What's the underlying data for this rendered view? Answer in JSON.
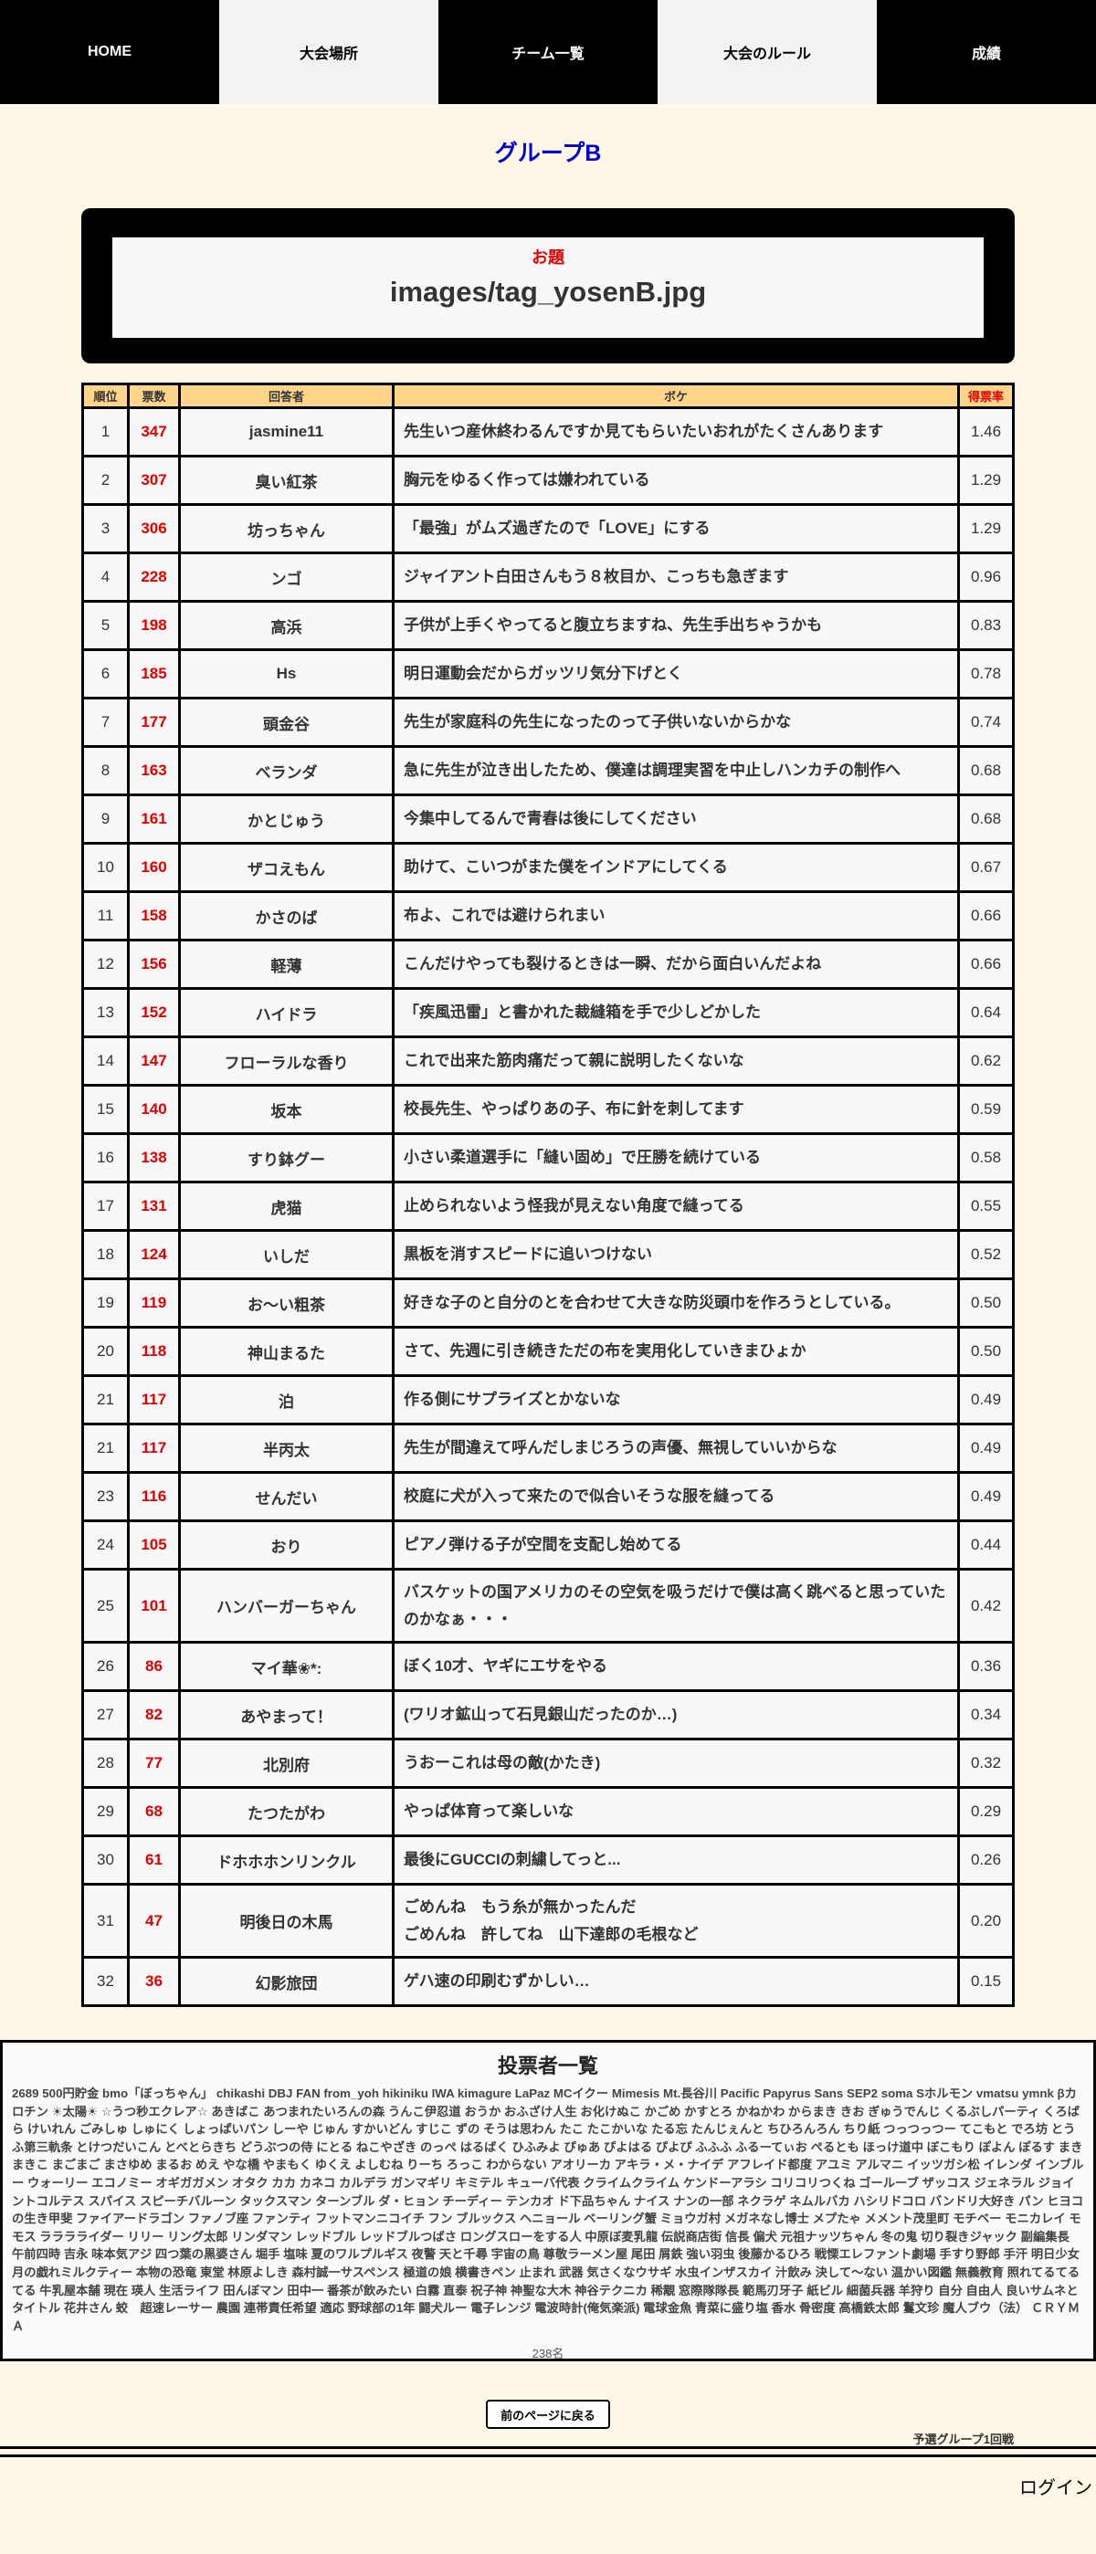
{
  "nav": [
    {
      "label": "HOME",
      "theme": "dark"
    },
    {
      "label": "大会場所",
      "theme": "light"
    },
    {
      "label": "チーム一覧",
      "theme": "dark"
    },
    {
      "label": "大会のルール",
      "theme": "light"
    },
    {
      "label": "成績",
      "theme": "dark"
    }
  ],
  "group_title": "グループB",
  "odai": {
    "label": "お題",
    "value": "images/tag_yosenB.jpg"
  },
  "table": {
    "headers": {
      "rank": "順位",
      "votes": "票数",
      "name": "回答者",
      "boke": "ボケ",
      "rate": "得票率"
    },
    "rows": [
      {
        "rank": "1",
        "votes": "347",
        "name": "jasmine11",
        "boke": "先生いつ産休終わるんですか見てもらいたいおれがたくさんあります",
        "rate": "1.46"
      },
      {
        "rank": "2",
        "votes": "307",
        "name": "臭い紅茶",
        "boke": "胸元をゆるく作っては嫌われている",
        "rate": "1.29"
      },
      {
        "rank": "3",
        "votes": "306",
        "name": "坊っちゃん",
        "boke": "「最強」がムズ過ぎたので「LOVE」にする",
        "rate": "1.29"
      },
      {
        "rank": "4",
        "votes": "228",
        "name": "ンゴ",
        "boke": "ジャイアント白田さんもう８枚目か、こっちも急ぎます",
        "rate": "0.96"
      },
      {
        "rank": "5",
        "votes": "198",
        "name": "高浜",
        "boke": "子供が上手くやってると腹立ちますね、先生手出ちゃうかも",
        "rate": "0.83"
      },
      {
        "rank": "6",
        "votes": "185",
        "name": "Hs",
        "boke": "明日運動会だからガッツリ気分下げとく",
        "rate": "0.78"
      },
      {
        "rank": "7",
        "votes": "177",
        "name": "頭金谷",
        "boke": "先生が家庭科の先生になったのって子供いないからかな",
        "rate": "0.74"
      },
      {
        "rank": "8",
        "votes": "163",
        "name": "ベランダ",
        "boke": "急に先生が泣き出したため、僕達は調理実習を中止しハンカチの制作へ",
        "rate": "0.68"
      },
      {
        "rank": "9",
        "votes": "161",
        "name": "かとじゅう",
        "boke": "今集中してるんで青春は後にしてください",
        "rate": "0.68"
      },
      {
        "rank": "10",
        "votes": "160",
        "name": "ザコえもん",
        "boke": "助けて、こいつがまた僕をインドアにしてくる",
        "rate": "0.67"
      },
      {
        "rank": "11",
        "votes": "158",
        "name": "かさのば",
        "boke": "布よ、これでは避けられまい",
        "rate": "0.66"
      },
      {
        "rank": "12",
        "votes": "156",
        "name": "軽薄",
        "boke": "こんだけやっても裂けるときは一瞬、だから面白いんだよね",
        "rate": "0.66"
      },
      {
        "rank": "13",
        "votes": "152",
        "name": "ハイドラ",
        "boke": "「疾風迅雷」と書かれた裁縫箱を手で少しどかした",
        "rate": "0.64"
      },
      {
        "rank": "14",
        "votes": "147",
        "name": "フローラルな香り",
        "boke": "これで出来た筋肉痛だって親に説明したくないな",
        "rate": "0.62"
      },
      {
        "rank": "15",
        "votes": "140",
        "name": "坂本",
        "boke": "校長先生、やっぱりあの子、布に針を刺してます",
        "rate": "0.59"
      },
      {
        "rank": "16",
        "votes": "138",
        "name": "すり鉢グー",
        "boke": "小さい柔道選手に「縫い固め」で圧勝を続けている",
        "rate": "0.58"
      },
      {
        "rank": "17",
        "votes": "131",
        "name": "虎猫",
        "boke": "止められないよう怪我が見えない角度で縫ってる",
        "rate": "0.55"
      },
      {
        "rank": "18",
        "votes": "124",
        "name": "いしだ",
        "boke": "黒板を消すスピードに追いつけない",
        "rate": "0.52"
      },
      {
        "rank": "19",
        "votes": "119",
        "name": "お〜い粗茶",
        "boke": "好きな子のと自分のとを合わせて大きな防災頭巾を作ろうとしている。",
        "rate": "0.50"
      },
      {
        "rank": "20",
        "votes": "118",
        "name": "神山まるた",
        "boke": "さて、先週に引き続きただの布を実用化していきまひょか",
        "rate": "0.50"
      },
      {
        "rank": "21",
        "votes": "117",
        "name": "泊",
        "boke": "作る側にサプライズとかないな",
        "rate": "0.49"
      },
      {
        "rank": "21",
        "votes": "117",
        "name": "半丙太",
        "boke": "先生が間違えて呼んだしまじろうの声優、無視していいからな",
        "rate": "0.49"
      },
      {
        "rank": "23",
        "votes": "116",
        "name": "せんだい",
        "boke": "校庭に犬が入って来たので似合いそうな服を縫ってる",
        "rate": "0.49"
      },
      {
        "rank": "24",
        "votes": "105",
        "name": "おり",
        "boke": "ピアノ弾ける子が空間を支配し始めてる",
        "rate": "0.44"
      },
      {
        "rank": "25",
        "votes": "101",
        "name": "ハンバーガーちゃん",
        "boke": "バスケットの国アメリカのその空気を吸うだけで僕は高く跳べると思っていたのかなぁ・・・",
        "rate": "0.42"
      },
      {
        "rank": "26",
        "votes": "86",
        "name": "マイ華❀*:",
        "boke": "ぼく10才、ヤギにエサをやる",
        "rate": "0.36"
      },
      {
        "rank": "27",
        "votes": "82",
        "name": "あやまって！",
        "boke": "(ワリオ鉱山って石見銀山だったのか…)",
        "rate": "0.34"
      },
      {
        "rank": "28",
        "votes": "77",
        "name": "北別府",
        "boke": "うおーこれは母の敵(かたき)",
        "rate": "0.32"
      },
      {
        "rank": "29",
        "votes": "68",
        "name": "たつたがわ",
        "boke": "やっぱ体育って楽しいな",
        "rate": "0.29"
      },
      {
        "rank": "30",
        "votes": "61",
        "name": "ドホホホンリンクル",
        "boke": "最後にGUCCIの刺繍してっと...",
        "rate": "0.26"
      },
      {
        "rank": "31",
        "votes": "47",
        "name": "明後日の木馬",
        "boke": "ごめんね　もう糸が無かったんだ\nごめんね　許してね　山下達郎の毛根など",
        "rate": "0.20"
      },
      {
        "rank": "32",
        "votes": "36",
        "name": "幻影旅団",
        "boke": "ゲハ速の印刷むずかしい…",
        "rate": "0.15"
      }
    ]
  },
  "voters": {
    "title": "投票者一覧",
    "list": "2689 500円貯金 bmo「ぼっちゃん」 chikashi DBJ FAN from_yoh hikiniku IWA kimagure LaPaz MCイクー Mimesis Mt.長谷川 Pacific Papyrus Sans SEP2 soma Sホルモン vmatsu ymnk βカロチン ☀太陽☀ ☆うつ秒エクレア☆ あきばこ あつまれたいろんの森 うんこ伊忍道 おうか おふざけ人生 お化けぬこ かごめ かすとろ かねかわ からまき きお ぎゅうでんじ くるぶしパーティ くろばら けいれん ごみしゅ しゅにく しょっぱいパン しーや じゅん すかいどん すじこ ずの そうは思わん たこ たこかいな たる忘 たんじぇんと ちひろんろん ちり紙 つっつっつー てこもと でろ坊 とうふ第三軌条 とけつだいこん とべとらきち どうぶつの侍 にとる ねこやざき のっぺ はるばく ひふみよ ぴゅあ ぴよはる ぴよぴ ふふふ ふるーてぃお ぺるとも ほっけ道中 ぼこもり ぽよん ぽるす まきまきこ まごまご まさゆめ まるお めえ やな橋 やまもく ゆくえ よしむね りーち ろっこ わからない アオリーカ アキラ・メ・ナイデ アフレイド都度 アユミ アルマニ イッツガシ松 イレンダ インブルー ウォーリー エコノミー オギガガメン オタク カカ カネコ カルデラ ガンマギリ キミテル キューバ代表 クライムクライム ケンドーアラシ コリコリつくね ゴールーブ ザッコス ジェネラル ジョイントコルテス スパイス スピーチバルーン タックスマン ターンブル ダ・ヒョン チーディー テンカオ ド下品ちゃん ナイス ナンの一部 ネクラゲ ネムルバカ ハシリドコロ バンドリ大好き パン ヒヨコの生き甲斐 ファイアードラゴン ファノブ座 ファンティ フットマンニコイチ フン ブルックス ヘニョール ベーリング蟹 ミョウガ村 メガネなし博士 メプたゃ メメント茂里町 モチベー モニカレイ モモス ラララライダー リリー リング太郎 リンダマン レッドブル レッドブルつばさ ロングスローをする人 中原ぼ麦乳龍 伝説商店街 信長 偏犬 元祖ナッツちゃん 冬の鬼 切り裂きジャック 副編集長 午前四時 吉永 味本気アジ 四つ葉の黒婆さん 堀手 塩味 夏のワルプルギス 夜警 天と千尋 宇宙の鳥 尊敬ラーメン屋 尾田 屑鉄 強い羽虫 後藤かるひろ 戦慄エレファント劇場 手すり野郎 手汗 明日少女 月の戯れミルクティー 本物の恐竜 東堂 林原よしき 森村誠一サスペンス 極道の娘 横書きペン 止まれ 武器 気さくなウサギ 水虫インザスカイ 汁飲み 決して〜ない 温かい図鑑 無義教育 照れてるてるてる 牛乳屋本舗 現在 瑛人 生活ライフ 田んぼマン 田中一 番茶が飲みたい 白霧 直泰 祝子神 神聖な大木 神谷テクニカ 稀覯 窓際隊隊長 範馬刃牙子 紙ビル 細菌兵器 羊狩り 自分 自由人 良いサムネとタイトル 花井さん 蛟　超速レーサー 農園 連帯責任希望 適応 野球部の1年 闘犬ルー 電子レンジ 電波時計(俺気楽派) 電球金魚 青菜に盛り塩 香水 骨密度 高橋鉄太郎 鬘文珍 魔人ブウ（法） ＣＲＹＭＡ",
    "count": "238名"
  },
  "footer": {
    "back_button": "前のページに戻る",
    "round_label": "予選グループ1回戦",
    "login": "ログイン"
  },
  "colors": {
    "accent_red": "#e00000",
    "title_blue": "#0000cc",
    "header_bg": "#fcd58b",
    "page_bg": "#fff8e7"
  }
}
